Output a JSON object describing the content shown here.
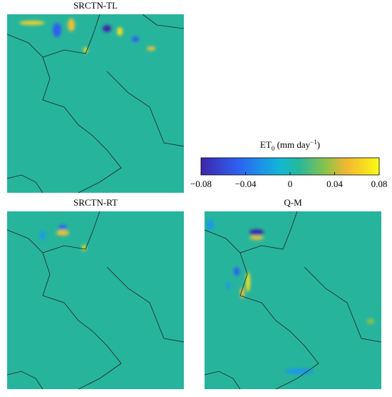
{
  "panels": [
    {
      "title": "SRCTN-TL"
    },
    {
      "title": "SRCTN-RT"
    },
    {
      "title": "Q-M"
    }
  ],
  "colorbar": {
    "label": {
      "main": "ET",
      "sub": "0",
      "unit": " (mm day",
      "sup": "−1",
      "close": ")"
    },
    "range": [
      -0.08,
      0.08
    ],
    "ticks": [
      {
        "value": -0.08,
        "label": "−0.08"
      },
      {
        "value": -0.04,
        "label": "−0.04"
      },
      0,
      0.04,
      0.08
    ]
  }
}
